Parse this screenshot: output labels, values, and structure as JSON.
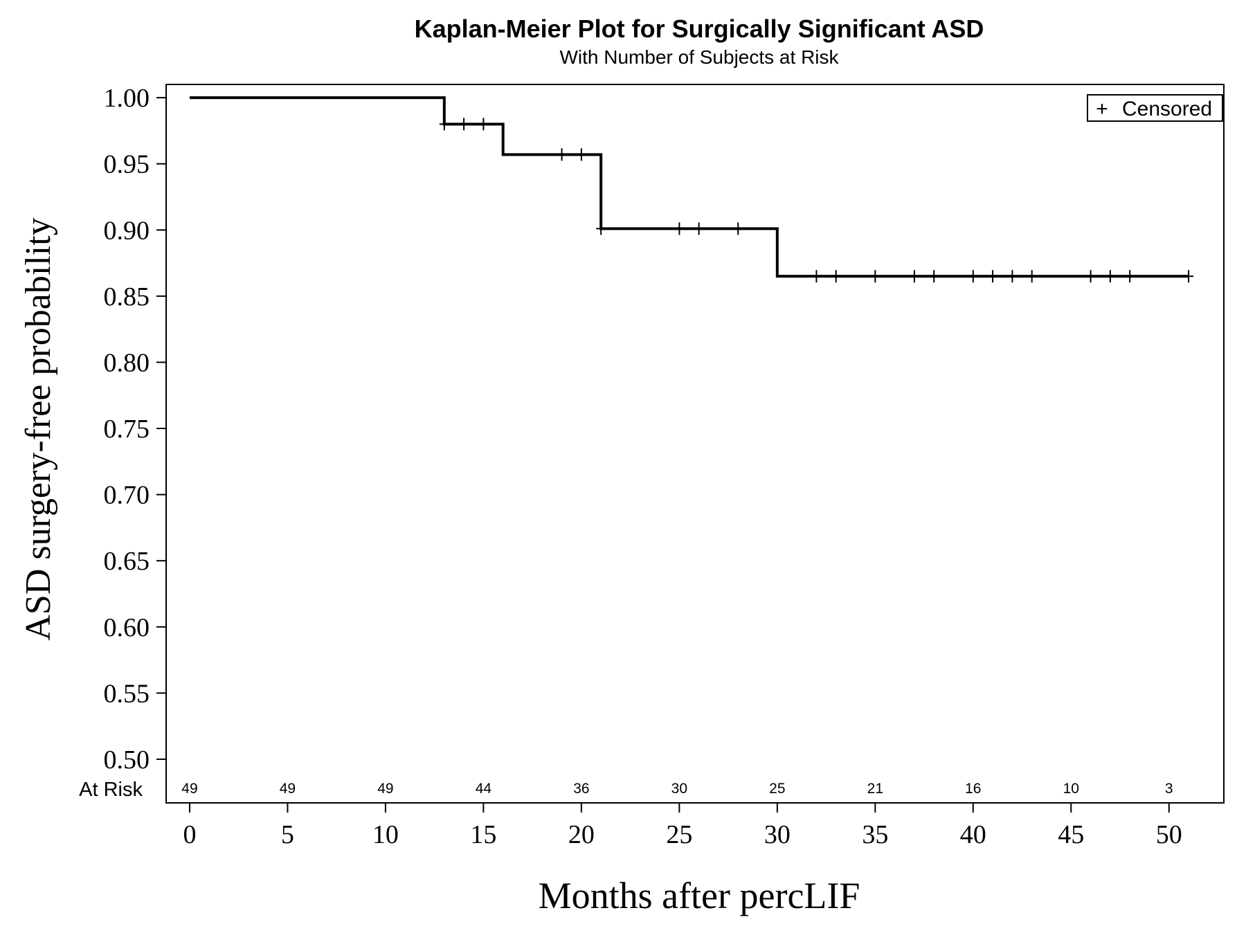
{
  "chart_data": {
    "type": "line",
    "title": "Kaplan-Meier Plot for Surgically Significant ASD",
    "subtitle": "With Number of Subjects at Risk",
    "xlabel": "Months after percLIF",
    "ylabel": "ASD surgery-free probability",
    "xlim": [
      -1.2,
      52.8
    ],
    "ylim": [
      0.467,
      1.01
    ],
    "x_ticks": [
      0,
      5,
      10,
      15,
      20,
      25,
      30,
      35,
      40,
      45,
      50
    ],
    "x_tick_labels": [
      "0",
      "5",
      "10",
      "15",
      "20",
      "25",
      "30",
      "35",
      "40",
      "45",
      "50"
    ],
    "y_ticks": [
      1.0,
      0.95,
      0.9,
      0.85,
      0.8,
      0.75,
      0.7,
      0.65,
      0.6,
      0.55,
      0.5
    ],
    "y_tick_labels": [
      "1.00",
      "0.95",
      "0.90",
      "0.85",
      "0.80",
      "0.75",
      "0.70",
      "0.65",
      "0.60",
      "0.55",
      "0.50"
    ],
    "grid": false,
    "step_function": {
      "x": [
        0,
        13,
        16,
        21,
        30,
        51
      ],
      "y": [
        1.0,
        0.98,
        0.957,
        0.901,
        0.865,
        0.865
      ]
    },
    "censored": {
      "x": [
        13,
        14,
        15,
        19,
        20,
        21,
        25,
        26,
        28,
        32,
        33,
        35,
        37,
        38,
        40,
        41,
        42,
        43,
        46,
        47,
        48,
        51
      ],
      "y": [
        0.98,
        0.98,
        0.98,
        0.957,
        0.957,
        0.901,
        0.901,
        0.901,
        0.901,
        0.865,
        0.865,
        0.865,
        0.865,
        0.865,
        0.865,
        0.865,
        0.865,
        0.865,
        0.865,
        0.865,
        0.865,
        0.865
      ]
    },
    "legend": {
      "position": "top-right",
      "symbol": "+",
      "label": "Censored"
    },
    "at_risk": {
      "label": "At Risk",
      "times": [
        0,
        5,
        10,
        15,
        20,
        25,
        30,
        35,
        40,
        45,
        50
      ],
      "counts": [
        "49",
        "49",
        "49",
        "44",
        "36",
        "30",
        "25",
        "21",
        "16",
        "10",
        "3"
      ]
    }
  }
}
